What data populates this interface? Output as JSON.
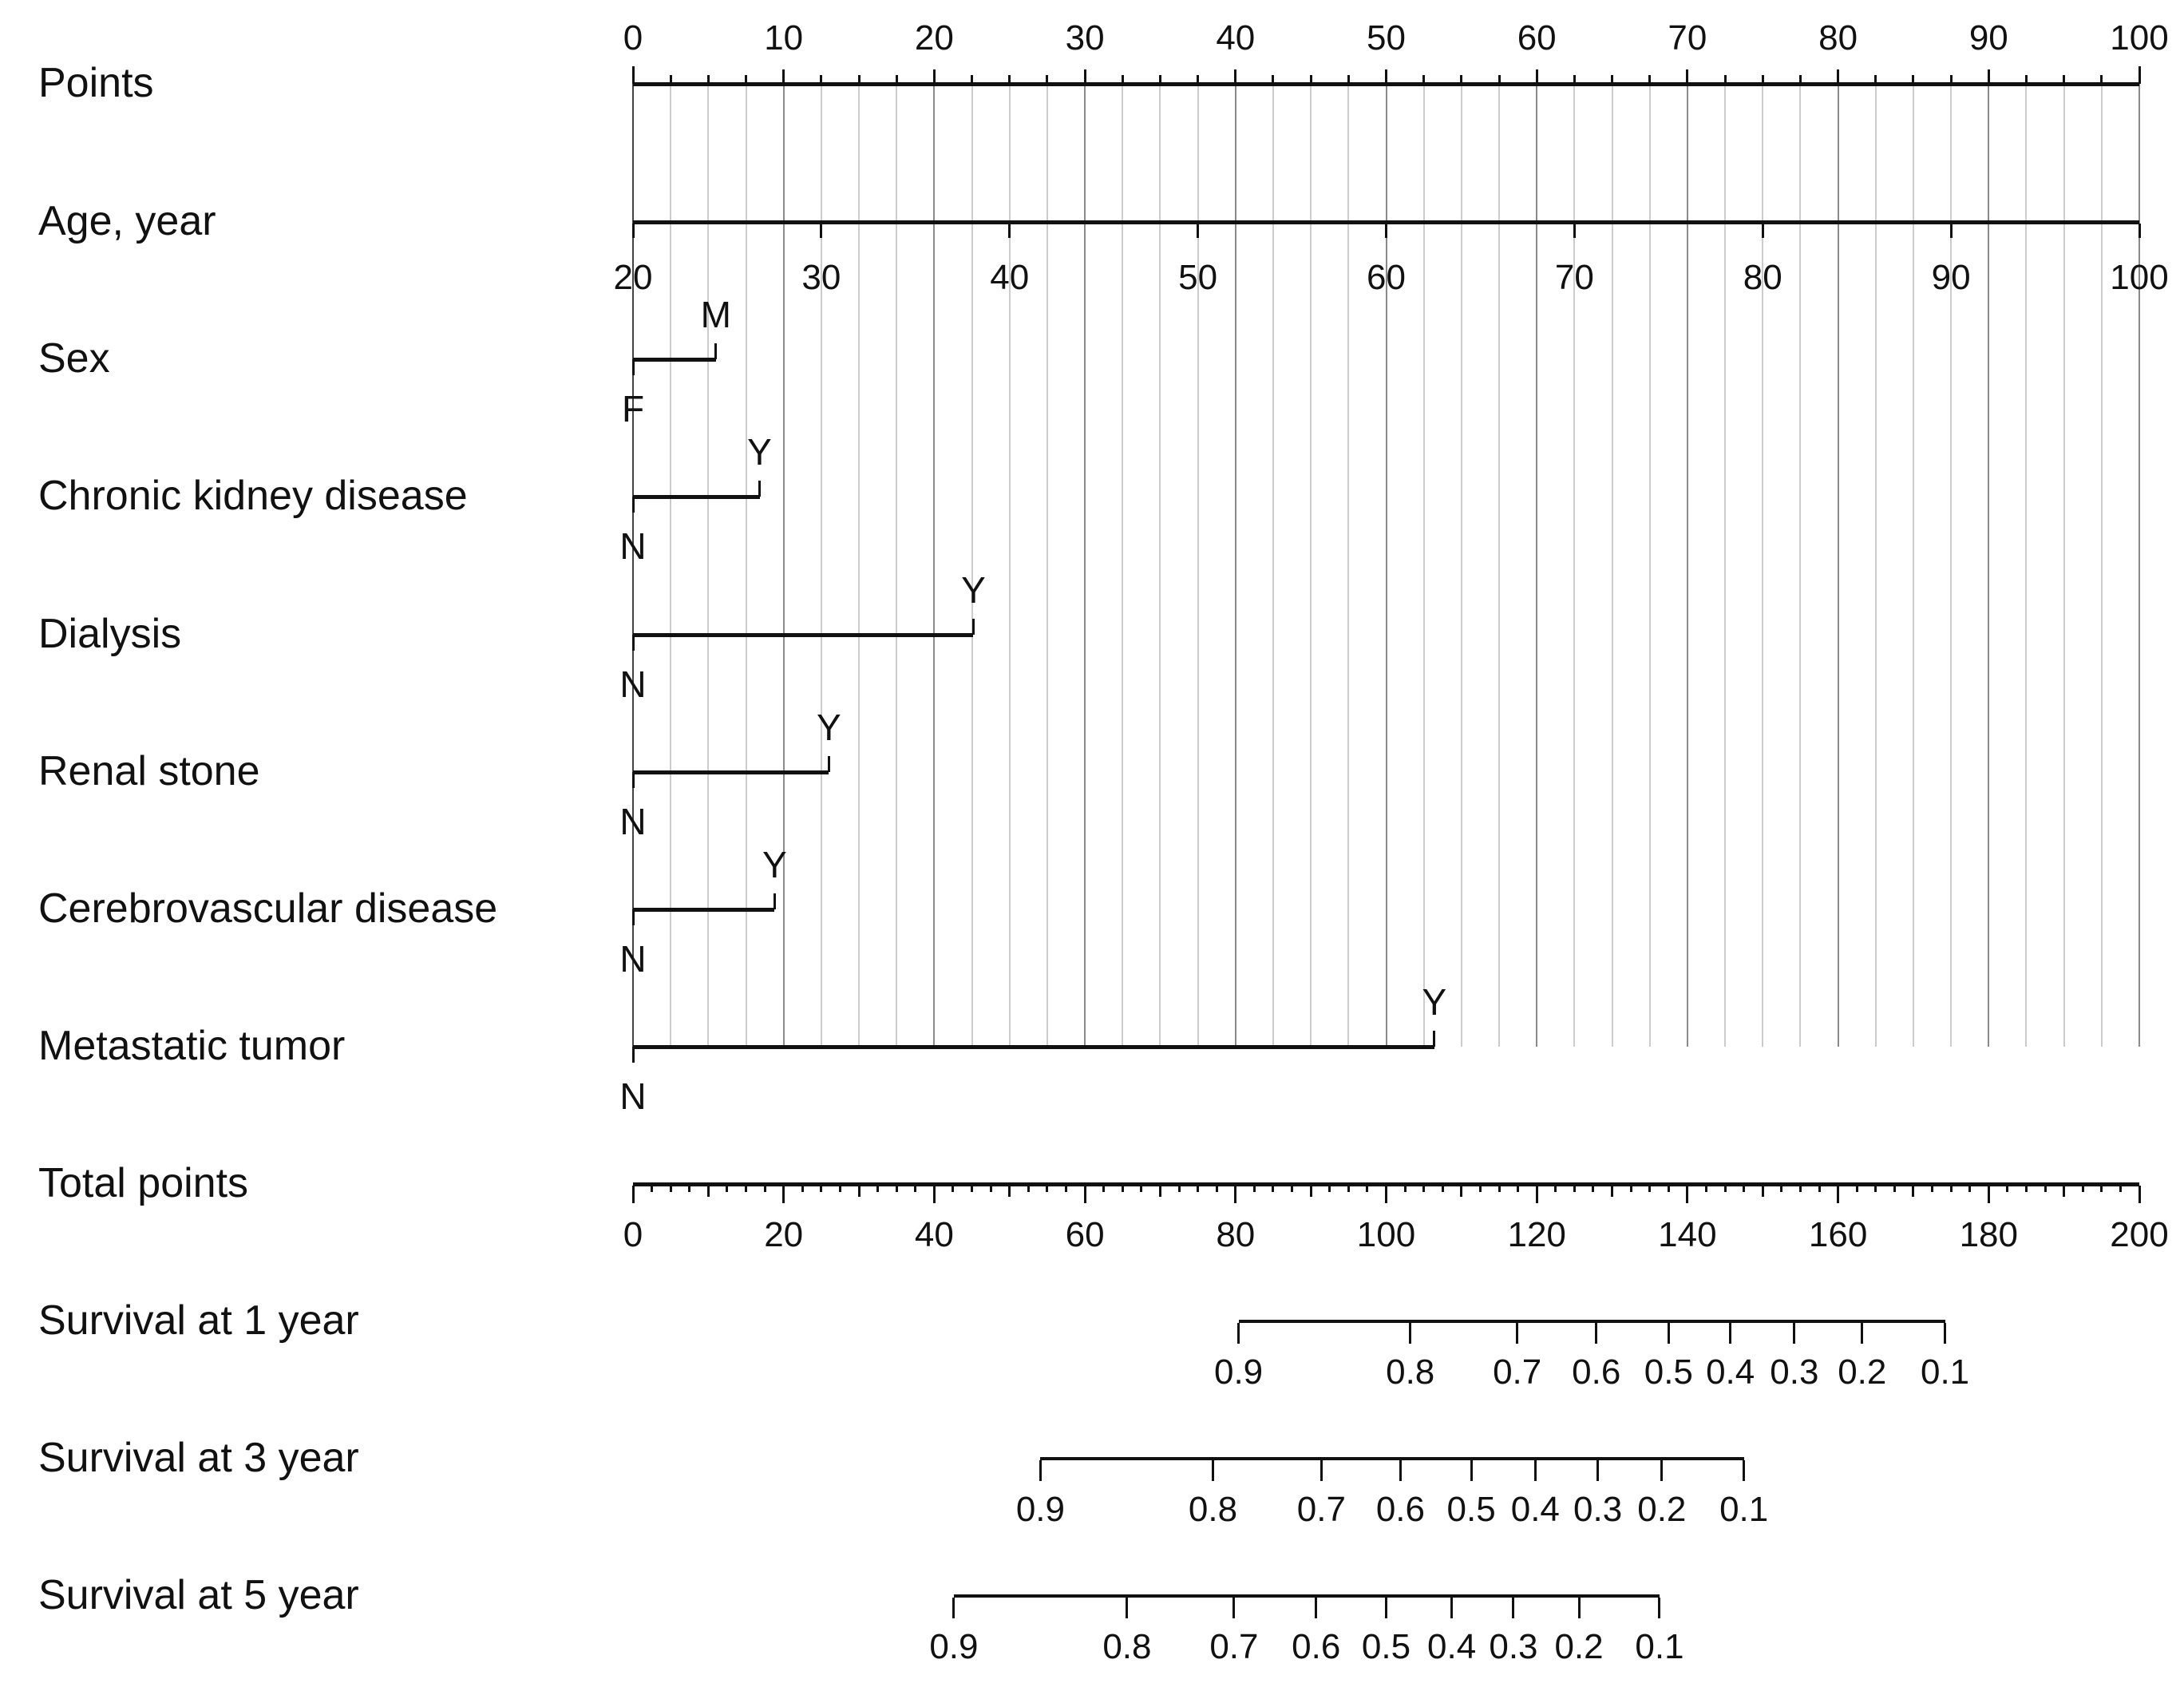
{
  "colors": {
    "background": "#ffffff",
    "axis": "#111111",
    "text": "#111111",
    "grid_minor": "#cccccc",
    "grid_major": "#8a8a8a",
    "grid_zero": "#444444"
  },
  "chart_data": {
    "type": "nomogram",
    "points_axis": {
      "label": "Points",
      "min": 0,
      "max": 100,
      "major_tick_step": 10,
      "minor_tick_step": 2.5,
      "tick_labels": [
        "0",
        "10",
        "20",
        "30",
        "40",
        "50",
        "60",
        "70",
        "80",
        "90",
        "100"
      ]
    },
    "age_axis": {
      "label": "Age, year",
      "min": 20,
      "max": 100,
      "tick_step": 10,
      "points_per_year": 1.25,
      "tick_labels": [
        "20",
        "30",
        "40",
        "50",
        "60",
        "70",
        "80",
        "90",
        "100"
      ]
    },
    "categorical_rows": [
      {
        "label": "Sex",
        "low": "F",
        "high": "M",
        "high_points": 5.5
      },
      {
        "label": "Chronic kidney disease",
        "low": "N",
        "high": "Y",
        "high_points": 8.4
      },
      {
        "label": "Dialysis",
        "low": "N",
        "high": "Y",
        "high_points": 22.6
      },
      {
        "label": "Renal stone",
        "low": "N",
        "high": "Y",
        "high_points": 13.0
      },
      {
        "label": "Cerebrovascular disease",
        "low": "N",
        "high": "Y",
        "high_points": 9.4
      },
      {
        "label": "Metastatic tumor",
        "low": "N",
        "high": "Y",
        "high_points": 53.2
      }
    ],
    "total_points_axis": {
      "label": "Total points",
      "min": 0,
      "max": 200,
      "label_step": 20,
      "minor_tick_step": 2.5,
      "tick_labels": [
        "0",
        "20",
        "40",
        "60",
        "80",
        "100",
        "120",
        "140",
        "160",
        "180",
        "200"
      ]
    },
    "survival_axes": [
      {
        "label": "Survival at 1 year",
        "tick_labels": [
          "0.9",
          "0.8",
          "0.7",
          "0.6",
          "0.5",
          "0.4",
          "0.3",
          "0.2",
          "0.1"
        ],
        "tick_total_points": [
          80.4,
          103.2,
          117.4,
          127.9,
          137.5,
          145.7,
          154.2,
          163.2,
          174.2
        ]
      },
      {
        "label": "Survival at 3 year",
        "tick_labels": [
          "0.9",
          "0.8",
          "0.7",
          "0.6",
          "0.5",
          "0.4",
          "0.3",
          "0.2",
          "0.1"
        ],
        "tick_total_points": [
          54.1,
          77.0,
          91.4,
          101.9,
          111.3,
          119.8,
          128.1,
          136.6,
          147.5
        ]
      },
      {
        "label": "Survival at 5 year",
        "tick_labels": [
          "0.9",
          "0.8",
          "0.7",
          "0.6",
          "0.5",
          "0.4",
          "0.3",
          "0.2",
          "0.1"
        ],
        "tick_total_points": [
          42.6,
          65.6,
          79.8,
          90.7,
          100.0,
          108.7,
          116.9,
          125.6,
          136.3
        ]
      }
    ]
  }
}
